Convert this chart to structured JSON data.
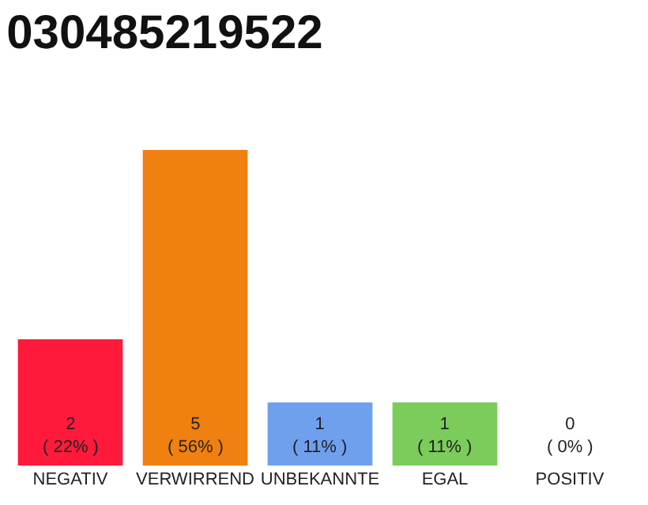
{
  "chart_data": {
    "type": "bar",
    "title": "030485219522",
    "categories": [
      "NEGATIV",
      "VERWIRREND",
      "UNBEKANNTE",
      "EGAL",
      "POSITIV"
    ],
    "values": [
      2,
      5,
      1,
      1,
      0
    ],
    "colors": [
      "#ff1a3c",
      "#f08010",
      "#6fa0ee",
      "#7ccc5c",
      "#eeeeee"
    ],
    "value_labels": [
      "2\n( 22% )",
      "5\n( 56% )",
      "1\n( 11% )",
      "1\n( 11% )",
      "0\n( 0% )"
    ],
    "ylim": [
      0,
      5
    ],
    "tick_labels": "x",
    "legend": false
  }
}
